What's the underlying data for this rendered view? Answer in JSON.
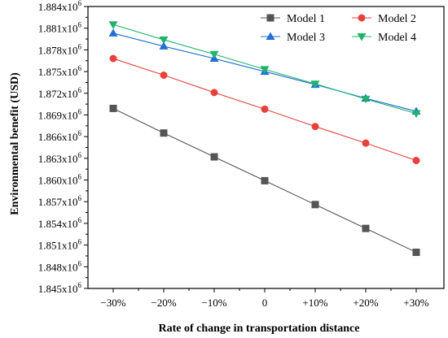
{
  "chart_data": {
    "type": "line",
    "categories": [
      "-30%",
      "-20%",
      "-10%",
      "0",
      "+10%",
      "+20%",
      "+30%"
    ],
    "xlabel": "Rate of change in transportation distance",
    "ylabel": "Environmental benefit (USD)",
    "ylim": [
      1845000,
      1884000
    ],
    "yticks": [
      1845000,
      1848000,
      1851000,
      1854000,
      1857000,
      1860000,
      1863000,
      1866000,
      1869000,
      1872000,
      1875000,
      1878000,
      1881000,
      1884000
    ],
    "ytick_labels": [
      {
        "base": "1.845x10",
        "exp": "6"
      },
      {
        "base": "1.848x10",
        "exp": "6"
      },
      {
        "base": "1.851x10",
        "exp": "6"
      },
      {
        "base": "1.854x10",
        "exp": "6"
      },
      {
        "base": "1.857x10",
        "exp": "6"
      },
      {
        "base": "1.860x10",
        "exp": "6"
      },
      {
        "base": "1.863x10",
        "exp": "6"
      },
      {
        "base": "1.866x10",
        "exp": "6"
      },
      {
        "base": "1.869x10",
        "exp": "6"
      },
      {
        "base": "1.872x10",
        "exp": "6"
      },
      {
        "base": "1.875x10",
        "exp": "6"
      },
      {
        "base": "1.878x10",
        "exp": "6"
      },
      {
        "base": "1.881x10",
        "exp": "6"
      },
      {
        "base": "1.884x10",
        "exp": "6"
      }
    ],
    "grid": false,
    "legend_position": "top-right",
    "series": [
      {
        "name": "Model 1",
        "color": "#555555",
        "marker": "square",
        "values": [
          1869900,
          1866500,
          1863200,
          1859900,
          1856600,
          1853300,
          1850000
        ]
      },
      {
        "name": "Model 2",
        "color": "#e8413c",
        "marker": "circle",
        "values": [
          1876800,
          1874500,
          1872100,
          1869800,
          1867400,
          1865100,
          1862700
        ]
      },
      {
        "name": "Model 3",
        "color": "#1f6fd6",
        "marker": "triangle-up",
        "values": [
          1880300,
          1878500,
          1876800,
          1875000,
          1873200,
          1871300,
          1869500
        ]
      },
      {
        "name": "Model 4",
        "color": "#20b36b",
        "marker": "triangle-down",
        "values": [
          1881500,
          1879400,
          1877400,
          1875300,
          1873300,
          1871200,
          1869200
        ]
      }
    ]
  }
}
